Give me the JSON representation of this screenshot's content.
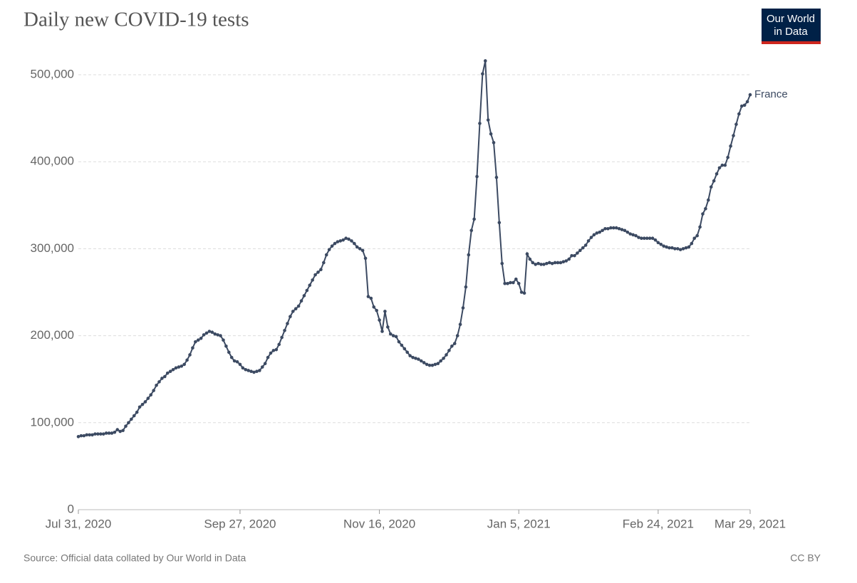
{
  "chart_data": {
    "type": "line",
    "title": "Daily new COVID-19 tests",
    "source": "Source: Official data collated by Our World in Data",
    "license": "CC BY",
    "logo": [
      "Our World",
      "in Data"
    ],
    "x": [
      "2020-07-31",
      "2020-08-01",
      "2020-08-02",
      "2020-08-03",
      "2020-08-04",
      "2020-08-05",
      "2020-08-06",
      "2020-08-07",
      "2020-08-08",
      "2020-08-09",
      "2020-08-10",
      "2020-08-11",
      "2020-08-12",
      "2020-08-13",
      "2020-08-14",
      "2020-08-15",
      "2020-08-16",
      "2020-08-17",
      "2020-08-18",
      "2020-08-19",
      "2020-08-20",
      "2020-08-21",
      "2020-08-22",
      "2020-08-23",
      "2020-08-24",
      "2020-08-25",
      "2020-08-26",
      "2020-08-27",
      "2020-08-28",
      "2020-08-29",
      "2020-08-30",
      "2020-08-31",
      "2020-09-01",
      "2020-09-02",
      "2020-09-03",
      "2020-09-04",
      "2020-09-05",
      "2020-09-06",
      "2020-09-07",
      "2020-09-08",
      "2020-09-09",
      "2020-09-10",
      "2020-09-11",
      "2020-09-12",
      "2020-09-13",
      "2020-09-14",
      "2020-09-15",
      "2020-09-16",
      "2020-09-17",
      "2020-09-18",
      "2020-09-19",
      "2020-09-20",
      "2020-09-21",
      "2020-09-22",
      "2020-09-23",
      "2020-09-24",
      "2020-09-25",
      "2020-09-26",
      "2020-09-27",
      "2020-09-28",
      "2020-09-29",
      "2020-09-30",
      "2020-10-01",
      "2020-10-02",
      "2020-10-03",
      "2020-10-04",
      "2020-10-05",
      "2020-10-06",
      "2020-10-07",
      "2020-10-08",
      "2020-10-09",
      "2020-10-10",
      "2020-10-11",
      "2020-10-12",
      "2020-10-13",
      "2020-10-14",
      "2020-10-15",
      "2020-10-16",
      "2020-10-17",
      "2020-10-18",
      "2020-10-19",
      "2020-10-20",
      "2020-10-21",
      "2020-10-22",
      "2020-10-23",
      "2020-10-24",
      "2020-10-25",
      "2020-10-26",
      "2020-10-27",
      "2020-10-28",
      "2020-10-29",
      "2020-10-30",
      "2020-10-31",
      "2020-11-01",
      "2020-11-02",
      "2020-11-03",
      "2020-11-04",
      "2020-11-05",
      "2020-11-06",
      "2020-11-07",
      "2020-11-08",
      "2020-11-09",
      "2020-11-10",
      "2020-11-11",
      "2020-11-12",
      "2020-11-13",
      "2020-11-14",
      "2020-11-15",
      "2020-11-16",
      "2020-11-17",
      "2020-11-18",
      "2020-11-19",
      "2020-11-20",
      "2020-11-21",
      "2020-11-22",
      "2020-11-23",
      "2020-11-24",
      "2020-11-25",
      "2020-11-26",
      "2020-11-27",
      "2020-11-28",
      "2020-11-29",
      "2020-11-30",
      "2020-12-01",
      "2020-12-02",
      "2020-12-03",
      "2020-12-04",
      "2020-12-05",
      "2020-12-06",
      "2020-12-07",
      "2020-12-08",
      "2020-12-09",
      "2020-12-10",
      "2020-12-11",
      "2020-12-12",
      "2020-12-13",
      "2020-12-14",
      "2020-12-15",
      "2020-12-16",
      "2020-12-17",
      "2020-12-18",
      "2020-12-19",
      "2020-12-20",
      "2020-12-21",
      "2020-12-22",
      "2020-12-23",
      "2020-12-24",
      "2020-12-25",
      "2020-12-26",
      "2020-12-27",
      "2020-12-28",
      "2020-12-29",
      "2020-12-30",
      "2020-12-31",
      "2021-01-01",
      "2021-01-02",
      "2021-01-03",
      "2021-01-04",
      "2021-01-05",
      "2021-01-06",
      "2021-01-07",
      "2021-01-08",
      "2021-01-09",
      "2021-01-10",
      "2021-01-11",
      "2021-01-12",
      "2021-01-13",
      "2021-01-14",
      "2021-01-15",
      "2021-01-16",
      "2021-01-17",
      "2021-01-18",
      "2021-01-19",
      "2021-01-20",
      "2021-01-21",
      "2021-01-22",
      "2021-01-23",
      "2021-01-24",
      "2021-01-25",
      "2021-01-26",
      "2021-01-27",
      "2021-01-28",
      "2021-01-29",
      "2021-01-30",
      "2021-01-31",
      "2021-02-01",
      "2021-02-02",
      "2021-02-03",
      "2021-02-04",
      "2021-02-05",
      "2021-02-06",
      "2021-02-07",
      "2021-02-08",
      "2021-02-09",
      "2021-02-10",
      "2021-02-11",
      "2021-02-12",
      "2021-02-13",
      "2021-02-14",
      "2021-02-15",
      "2021-02-16",
      "2021-02-17",
      "2021-02-18",
      "2021-02-19",
      "2021-02-20",
      "2021-02-21",
      "2021-02-22",
      "2021-02-23",
      "2021-02-24",
      "2021-02-25",
      "2021-02-26",
      "2021-02-27",
      "2021-02-28",
      "2021-03-01",
      "2021-03-02",
      "2021-03-03",
      "2021-03-04",
      "2021-03-05",
      "2021-03-06",
      "2021-03-07",
      "2021-03-08",
      "2021-03-09",
      "2021-03-10",
      "2021-03-11",
      "2021-03-12",
      "2021-03-13",
      "2021-03-14",
      "2021-03-15",
      "2021-03-16",
      "2021-03-17",
      "2021-03-18",
      "2021-03-19",
      "2021-03-20",
      "2021-03-21",
      "2021-03-22",
      "2021-03-23",
      "2021-03-24",
      "2021-03-25",
      "2021-03-26",
      "2021-03-27",
      "2021-03-28",
      "2021-03-29"
    ],
    "series": [
      {
        "name": "France",
        "color": "#3c4a62",
        "values": [
          84000,
          85000,
          85000,
          86000,
          86000,
          86000,
          87000,
          87000,
          87000,
          87000,
          88000,
          88000,
          88000,
          89000,
          92000,
          90000,
          91000,
          96000,
          100000,
          104000,
          108000,
          112000,
          118000,
          121000,
          124000,
          128000,
          132000,
          137000,
          143000,
          147000,
          151000,
          153000,
          157000,
          159000,
          161000,
          163000,
          164000,
          165000,
          167000,
          172000,
          178000,
          186000,
          193000,
          195000,
          197000,
          201000,
          203000,
          205000,
          204000,
          202000,
          201000,
          200000,
          195000,
          188000,
          181000,
          175000,
          171000,
          170000,
          167000,
          163000,
          161000,
          160000,
          159000,
          158000,
          159000,
          160000,
          164000,
          168000,
          175000,
          180000,
          183000,
          184000,
          190000,
          198000,
          206000,
          214000,
          222000,
          228000,
          231000,
          234000,
          240000,
          246000,
          252000,
          258000,
          264000,
          270000,
          273000,
          276000,
          284000,
          293000,
          299000,
          303000,
          306000,
          308000,
          309000,
          310000,
          312000,
          311000,
          309000,
          306000,
          302000,
          300000,
          298000,
          289000,
          245000,
          243000,
          233000,
          229000,
          218000,
          205000,
          228000,
          210000,
          202000,
          200000,
          199000,
          193000,
          189000,
          185000,
          181000,
          177000,
          175000,
          174000,
          173000,
          171000,
          169000,
          167000,
          166000,
          166000,
          167000,
          168000,
          171000,
          174000,
          178000,
          183000,
          188000,
          191000,
          200000,
          213000,
          232000,
          256000,
          293000,
          321000,
          334000,
          383000,
          444000,
          501000,
          516000,
          448000,
          432000,
          422000,
          382000,
          330000,
          283000,
          260000,
          260000,
          261000,
          261000,
          265000,
          260000,
          250000,
          249000,
          294000,
          288000,
          284000,
          282000,
          283000,
          282000,
          282000,
          283000,
          284000,
          283000,
          284000,
          284000,
          284000,
          285000,
          286000,
          288000,
          292000,
          292000,
          295000,
          298000,
          301000,
          304000,
          309000,
          313000,
          316000,
          318000,
          319000,
          321000,
          323000,
          323000,
          324000,
          324000,
          324000,
          323000,
          322000,
          321000,
          319000,
          317000,
          316000,
          315000,
          313000,
          312000,
          312000,
          312000,
          312000,
          312000,
          310000,
          307000,
          305000,
          303000,
          302000,
          301000,
          301000,
          300000,
          300000,
          299000,
          300000,
          301000,
          302000,
          306000,
          312000,
          315000,
          325000,
          340000,
          346000,
          356000,
          371000,
          378000,
          386000,
          393000,
          396000,
          396000,
          405000,
          418000,
          430000,
          443000,
          455000,
          464000,
          465000,
          469000,
          477000
        ]
      }
    ],
    "xlim": [
      "2020-07-31",
      "2021-03-29"
    ],
    "xticks": [
      {
        "value": "2020-07-31",
        "label": "Jul 31, 2020"
      },
      {
        "value": "2020-09-27",
        "label": "Sep 27, 2020"
      },
      {
        "value": "2020-11-16",
        "label": "Nov 16, 2020"
      },
      {
        "value": "2021-01-05",
        "label": "Jan 5, 2021"
      },
      {
        "value": "2021-02-24",
        "label": "Feb 24, 2021"
      },
      {
        "value": "2021-03-29",
        "label": "Mar 29, 2021"
      }
    ],
    "ylim": [
      0,
      560000
    ],
    "yticks": [
      0,
      {
        "value": 100000,
        "label": "100,000"
      },
      {
        "value": 200000,
        "label": "200,000"
      },
      {
        "value": 300000,
        "label": "300,000"
      },
      {
        "value": 400000,
        "label": "400,000"
      },
      {
        "value": 500000,
        "label": "500,000"
      }
    ],
    "grid": true
  }
}
